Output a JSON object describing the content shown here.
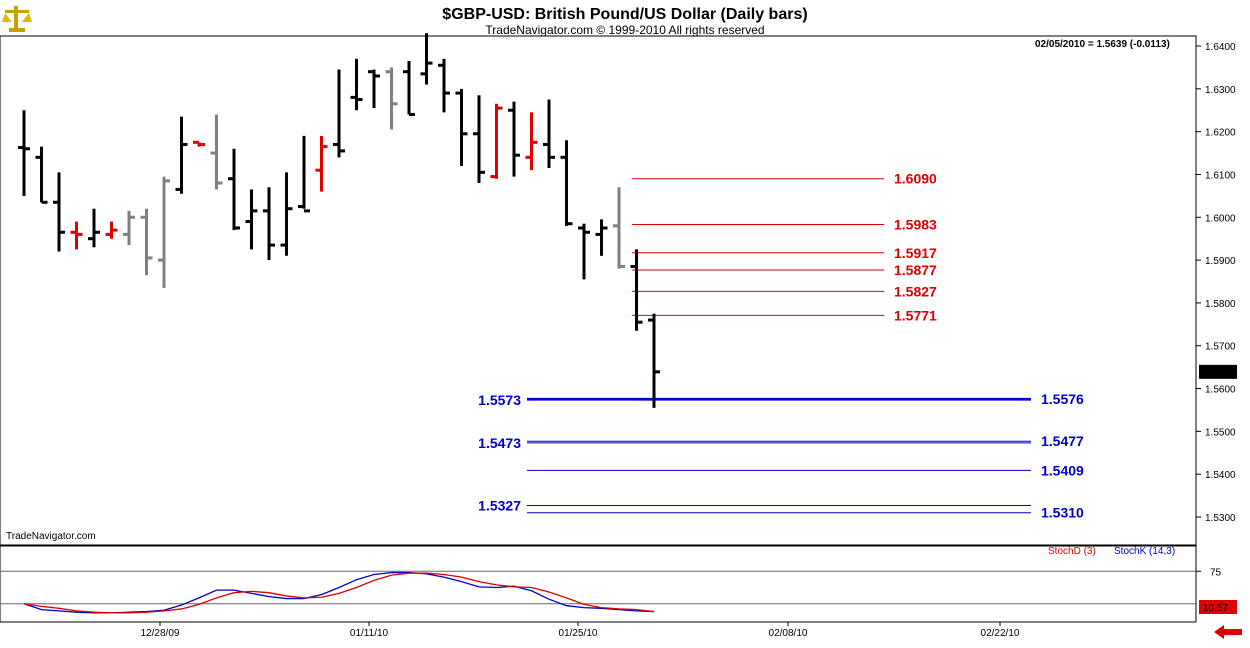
{
  "chart_data": [
    {
      "type": "ohlc",
      "title": "$GBP-USD:  British Pound/US Dollar  (Daily bars)",
      "subtitle": "TradeNavigator.com © 1999-2010 All rights reserved",
      "quote_box": "02/05/2010 = 1.5639 (-0.0113)",
      "watermark": "TradeNavigator.com",
      "last_price_label": "1.5639",
      "last_price": 1.5639,
      "y_ticks": [
        "1.6400",
        "1.6300",
        "1.6200",
        "1.6100",
        "1.6000",
        "1.5900",
        "1.5800",
        "1.5700",
        "1.5600",
        "1.5500",
        "1.5400",
        "1.5300"
      ],
      "ylim": [
        1.527,
        1.6435
      ],
      "x_labels": [
        "12/28/09",
        "01/11/10",
        "01/25/10",
        "02/08/10",
        "02/22/10"
      ],
      "colors": {
        "up": "#000000",
        "down": "#000000",
        "red": "#e00000",
        "gray": "#808080",
        "green": "#00aa00"
      },
      "bars": [
        {
          "o": 1.6163,
          "h": 1.625,
          "l": 1.605,
          "c": 1.616,
          "col": "k"
        },
        {
          "o": 1.614,
          "h": 1.6165,
          "l": 1.6035,
          "c": 1.6035,
          "col": "k"
        },
        {
          "o": 1.6035,
          "h": 1.6105,
          "l": 1.592,
          "c": 1.5965,
          "col": "k"
        },
        {
          "o": 1.5965,
          "h": 1.599,
          "l": 1.5925,
          "c": 1.596,
          "col": "r"
        },
        {
          "o": 1.595,
          "h": 1.602,
          "l": 1.593,
          "c": 1.5965,
          "col": "k"
        },
        {
          "o": 1.596,
          "h": 1.599,
          "l": 1.595,
          "c": 1.597,
          "col": "r"
        },
        {
          "o": 1.596,
          "h": 1.6015,
          "l": 1.5935,
          "c": 1.6,
          "col": "g"
        },
        {
          "o": 1.6,
          "h": 1.602,
          "l": 1.5865,
          "c": 1.5905,
          "col": "g"
        },
        {
          "o": 1.59,
          "h": 1.6095,
          "l": 1.5835,
          "c": 1.6085,
          "col": "g"
        },
        {
          "o": 1.6065,
          "h": 1.6235,
          "l": 1.6055,
          "c": 1.617,
          "col": "k"
        },
        {
          "o": 1.6175,
          "h": 1.6175,
          "l": 1.6165,
          "c": 1.617,
          "col": "r"
        },
        {
          "o": 1.615,
          "h": 1.624,
          "l": 1.6065,
          "c": 1.608,
          "col": "g"
        },
        {
          "o": 1.609,
          "h": 1.616,
          "l": 1.597,
          "c": 1.5975,
          "col": "k"
        },
        {
          "o": 1.599,
          "h": 1.6065,
          "l": 1.5925,
          "c": 1.6015,
          "col": "k"
        },
        {
          "o": 1.6015,
          "h": 1.607,
          "l": 1.59,
          "c": 1.5935,
          "col": "k"
        },
        {
          "o": 1.5935,
          "h": 1.6105,
          "l": 1.591,
          "c": 1.602,
          "col": "k"
        },
        {
          "o": 1.6025,
          "h": 1.619,
          "l": 1.602,
          "c": 1.6015,
          "col": "k"
        },
        {
          "o": 1.611,
          "h": 1.619,
          "l": 1.606,
          "c": 1.6165,
          "col": "r"
        },
        {
          "o": 1.617,
          "h": 1.6345,
          "l": 1.614,
          "c": 1.6155,
          "col": "k"
        },
        {
          "o": 1.628,
          "h": 1.637,
          "l": 1.625,
          "c": 1.6275,
          "col": "k"
        },
        {
          "o": 1.634,
          "h": 1.6345,
          "l": 1.6255,
          "c": 1.633,
          "col": "k"
        },
        {
          "o": 1.634,
          "h": 1.635,
          "l": 1.6205,
          "c": 1.6265,
          "col": "g"
        },
        {
          "o": 1.634,
          "h": 1.6365,
          "l": 1.624,
          "c": 1.624,
          "col": "k"
        },
        {
          "o": 1.6335,
          "h": 1.643,
          "l": 1.631,
          "c": 1.636,
          "col": "k"
        },
        {
          "o": 1.6355,
          "h": 1.637,
          "l": 1.6245,
          "c": 1.629,
          "col": "k"
        },
        {
          "o": 1.629,
          "h": 1.63,
          "l": 1.612,
          "c": 1.6195,
          "col": "k"
        },
        {
          "o": 1.6195,
          "h": 1.6285,
          "l": 1.608,
          "c": 1.6105,
          "col": "k"
        },
        {
          "o": 1.6095,
          "h": 1.6265,
          "l": 1.609,
          "c": 1.6255,
          "col": "r"
        },
        {
          "o": 1.625,
          "h": 1.627,
          "l": 1.6095,
          "c": 1.6145,
          "col": "k"
        },
        {
          "o": 1.614,
          "h": 1.6245,
          "l": 1.611,
          "c": 1.6175,
          "col": "r"
        },
        {
          "o": 1.617,
          "h": 1.6275,
          "l": 1.6115,
          "c": 1.614,
          "col": "k"
        },
        {
          "o": 1.614,
          "h": 1.618,
          "l": 1.598,
          "c": 1.5985,
          "col": "k"
        },
        {
          "o": 1.5975,
          "h": 1.5985,
          "l": 1.5855,
          "c": 1.5965,
          "col": "k"
        },
        {
          "o": 1.596,
          "h": 1.5995,
          "l": 1.591,
          "c": 1.5975,
          "col": "k"
        },
        {
          "o": 1.598,
          "h": 1.607,
          "l": 1.588,
          "c": 1.5885,
          "col": "g"
        },
        {
          "o": 1.5885,
          "h": 1.5925,
          "l": 1.5735,
          "c": 1.5755,
          "col": "k"
        },
        {
          "o": 1.576,
          "h": 1.5775,
          "l": 1.5555,
          "c": 1.5639,
          "col": "k"
        }
      ],
      "resistance_levels": [
        {
          "value": 1.609,
          "label": "1.6090"
        },
        {
          "value": 1.5983,
          "label": "1.5983"
        },
        {
          "value": 1.5917,
          "label": "1.5917"
        },
        {
          "value": 1.5877,
          "label": "1.5877"
        },
        {
          "value": 1.5827,
          "label": "1.5827"
        },
        {
          "value": 1.5771,
          "label": "1.5771"
        }
      ],
      "support_levels": [
        {
          "value": 1.5576,
          "label": "1.5576",
          "left_label": "1.5573"
        },
        {
          "value": 1.5477,
          "label": "1.5477",
          "left_label": "1.5473"
        },
        {
          "value": 1.5409,
          "label": "1.5409",
          "left_label": ""
        },
        {
          "value": 1.531,
          "label": "1.5310",
          "left_label": "1.5327"
        }
      ]
    },
    {
      "type": "line",
      "legend": [
        {
          "name": "StochD (3)",
          "color": "#e00000"
        },
        {
          "name": "StochK (14,3)",
          "color": "#0000cc"
        }
      ],
      "y_ticks": [
        "75"
      ],
      "ylim": [
        0,
        100
      ],
      "reference_lines": [
        75,
        25
      ],
      "last_value_label": "10.57",
      "x_labels": [
        "12/28/09",
        "01/11/10",
        "01/25/10",
        "02/08/10",
        "02/22/10"
      ],
      "series": [
        {
          "name": "StochK (14,3)",
          "color": "#0000cc",
          "values": [
            25,
            16,
            14,
            12,
            11,
            11,
            12,
            13,
            15,
            23,
            34,
            46,
            46,
            41,
            36,
            33,
            33,
            39,
            50,
            62,
            70,
            73,
            73,
            71,
            66,
            59,
            51,
            50,
            52,
            45,
            32,
            22,
            19,
            18,
            16,
            14,
            13
          ]
        },
        {
          "name": "StochD (3)",
          "color": "#e00000",
          "values": [
            25,
            21,
            18,
            14,
            12,
            11,
            11,
            12,
            14,
            17,
            24,
            34,
            42,
            44,
            42,
            37,
            34,
            35,
            41,
            50,
            61,
            69,
            72,
            72,
            70,
            66,
            59,
            54,
            51,
            50,
            43,
            34,
            24,
            19,
            17,
            16,
            13
          ]
        }
      ]
    }
  ]
}
